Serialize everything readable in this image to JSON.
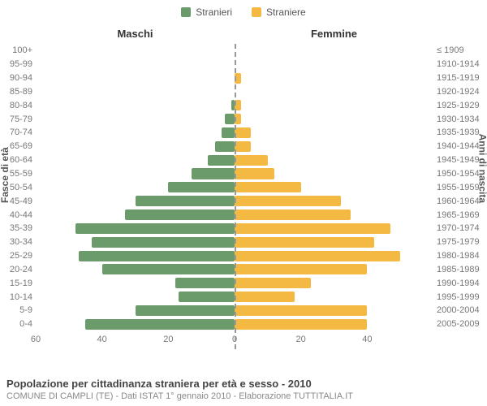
{
  "legend": {
    "male": {
      "label": "Stranieri",
      "color": "#6b9a6b"
    },
    "female": {
      "label": "Straniere",
      "color": "#f4b942"
    }
  },
  "headers": {
    "left": "Maschi",
    "right": "Femmine"
  },
  "axis_titles": {
    "left": "Fasce di età",
    "right": "Anni di nascita"
  },
  "chart": {
    "type": "population-pyramid",
    "male_color": "#6b9a6b",
    "female_color": "#f4b942",
    "x_max": 60,
    "x_ticks_left": [
      60,
      40,
      20,
      0
    ],
    "x_ticks_right": [
      0,
      20,
      40
    ],
    "background_color": "#ffffff",
    "bar_radius": 2,
    "rows": [
      {
        "age": "100+",
        "year": "≤ 1909",
        "male": 0,
        "female": 0
      },
      {
        "age": "95-99",
        "year": "1910-1914",
        "male": 0,
        "female": 0
      },
      {
        "age": "90-94",
        "year": "1915-1919",
        "male": 0,
        "female": 2
      },
      {
        "age": "85-89",
        "year": "1920-1924",
        "male": 0,
        "female": 0
      },
      {
        "age": "80-84",
        "year": "1925-1929",
        "male": 1,
        "female": 2
      },
      {
        "age": "75-79",
        "year": "1930-1934",
        "male": 3,
        "female": 2
      },
      {
        "age": "70-74",
        "year": "1935-1939",
        "male": 4,
        "female": 5
      },
      {
        "age": "65-69",
        "year": "1940-1944",
        "male": 6,
        "female": 5
      },
      {
        "age": "60-64",
        "year": "1945-1949",
        "male": 8,
        "female": 10
      },
      {
        "age": "55-59",
        "year": "1950-1954",
        "male": 13,
        "female": 12
      },
      {
        "age": "50-54",
        "year": "1955-1959",
        "male": 20,
        "female": 20
      },
      {
        "age": "45-49",
        "year": "1960-1964",
        "male": 30,
        "female": 32
      },
      {
        "age": "40-44",
        "year": "1965-1969",
        "male": 33,
        "female": 35
      },
      {
        "age": "35-39",
        "year": "1970-1974",
        "male": 48,
        "female": 47
      },
      {
        "age": "30-34",
        "year": "1975-1979",
        "male": 43,
        "female": 42
      },
      {
        "age": "25-29",
        "year": "1980-1984",
        "male": 47,
        "female": 50
      },
      {
        "age": "20-24",
        "year": "1985-1989",
        "male": 40,
        "female": 40
      },
      {
        "age": "15-19",
        "year": "1990-1994",
        "male": 18,
        "female": 23
      },
      {
        "age": "10-14",
        "year": "1995-1999",
        "male": 17,
        "female": 18
      },
      {
        "age": "5-9",
        "year": "2000-2004",
        "male": 30,
        "female": 40
      },
      {
        "age": "0-4",
        "year": "2005-2009",
        "male": 45,
        "female": 40
      }
    ]
  },
  "footer": {
    "title": "Popolazione per cittadinanza straniera per età e sesso - 2010",
    "subtitle": "COMUNE DI CAMPLI (TE) - Dati ISTAT 1° gennaio 2010 - Elaborazione TUTTITALIA.IT"
  }
}
